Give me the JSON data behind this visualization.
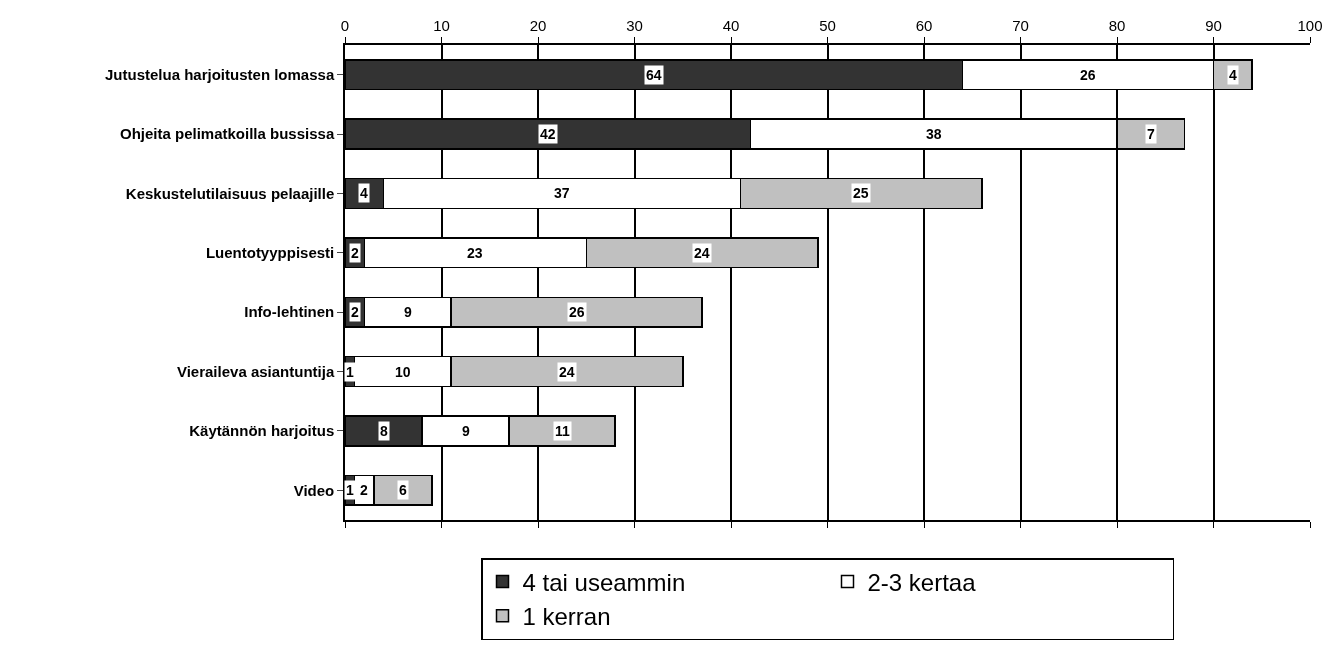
{
  "chart_data": {
    "type": "bar",
    "orientation": "horizontal",
    "stacked": true,
    "categories": [
      "Jutustelua harjoitusten lomassa",
      "Ohjeita pelimatkoilla bussissa",
      "Keskustelutilaisuus pelaajille",
      "Luentotyyppisesti",
      "Info-lehtinen",
      "Vieraileva asiantuntija",
      "Käytännön harjoitus",
      "Video"
    ],
    "series": [
      {
        "name": "4 tai useammin",
        "color": "#333333",
        "values": [
          64,
          42,
          4,
          2,
          2,
          1,
          8,
          1
        ]
      },
      {
        "name": "2-3 kertaa",
        "color": "#ffffff",
        "values": [
          26,
          38,
          37,
          23,
          9,
          10,
          9,
          2
        ]
      },
      {
        "name": "1 kerran",
        "color": "#c0c0c0",
        "values": [
          4,
          7,
          25,
          24,
          26,
          24,
          11,
          6
        ]
      }
    ],
    "xlim": [
      0,
      100
    ],
    "xticks": [
      0,
      10,
      20,
      30,
      40,
      50,
      60,
      70,
      80,
      90,
      100
    ],
    "grid": "x",
    "legend": "bottom",
    "data_labels": true
  }
}
